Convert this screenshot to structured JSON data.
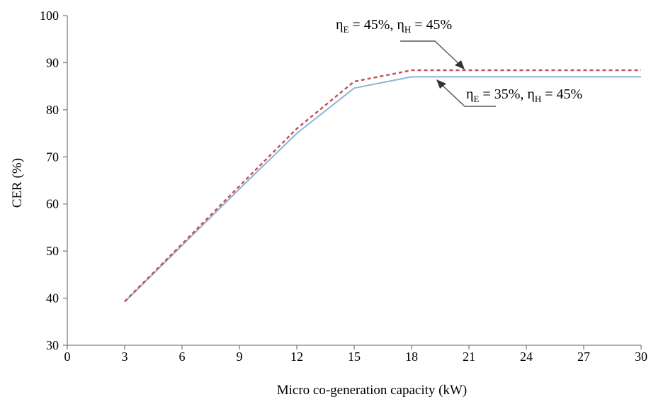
{
  "chart_data": {
    "type": "line",
    "title": "",
    "xlabel": "Micro co-generation capacity (kW)",
    "ylabel": "CER (%)",
    "xlim": [
      0,
      30
    ],
    "ylim": [
      30,
      100
    ],
    "x_ticks": [
      "0",
      "3",
      "6",
      "9",
      "12",
      "15",
      "18",
      "21",
      "24",
      "27",
      "30"
    ],
    "y_ticks": [
      "30",
      "40",
      "50",
      "60",
      "70",
      "80",
      "90",
      "100"
    ],
    "grid": false,
    "series": [
      {
        "annotation": {
          "eta": "η",
          "sub1": "E",
          "mid": " = 45%,  ",
          "sub2": "H",
          "end": " = 45%"
        },
        "style": "dashed",
        "color": "#c0504d",
        "x": [
          3,
          6,
          9,
          12,
          15,
          18,
          21,
          24,
          27,
          30
        ],
        "y": [
          39.3,
          51.5,
          63.8,
          76,
          86,
          88.4,
          88.4,
          88.4,
          88.4,
          88.4
        ]
      },
      {
        "annotation": {
          "eta": "η",
          "sub1": "E",
          "mid": " = 35%,  ",
          "sub2": "H",
          "end": " = 45%"
        },
        "style": "solid",
        "color": "#8eb4d8",
        "x": [
          3,
          6,
          9,
          12,
          15,
          18,
          21,
          24,
          27,
          30
        ],
        "y": [
          39.2,
          51.2,
          63.2,
          75,
          84.6,
          87,
          87,
          87,
          87,
          87
        ]
      }
    ]
  }
}
